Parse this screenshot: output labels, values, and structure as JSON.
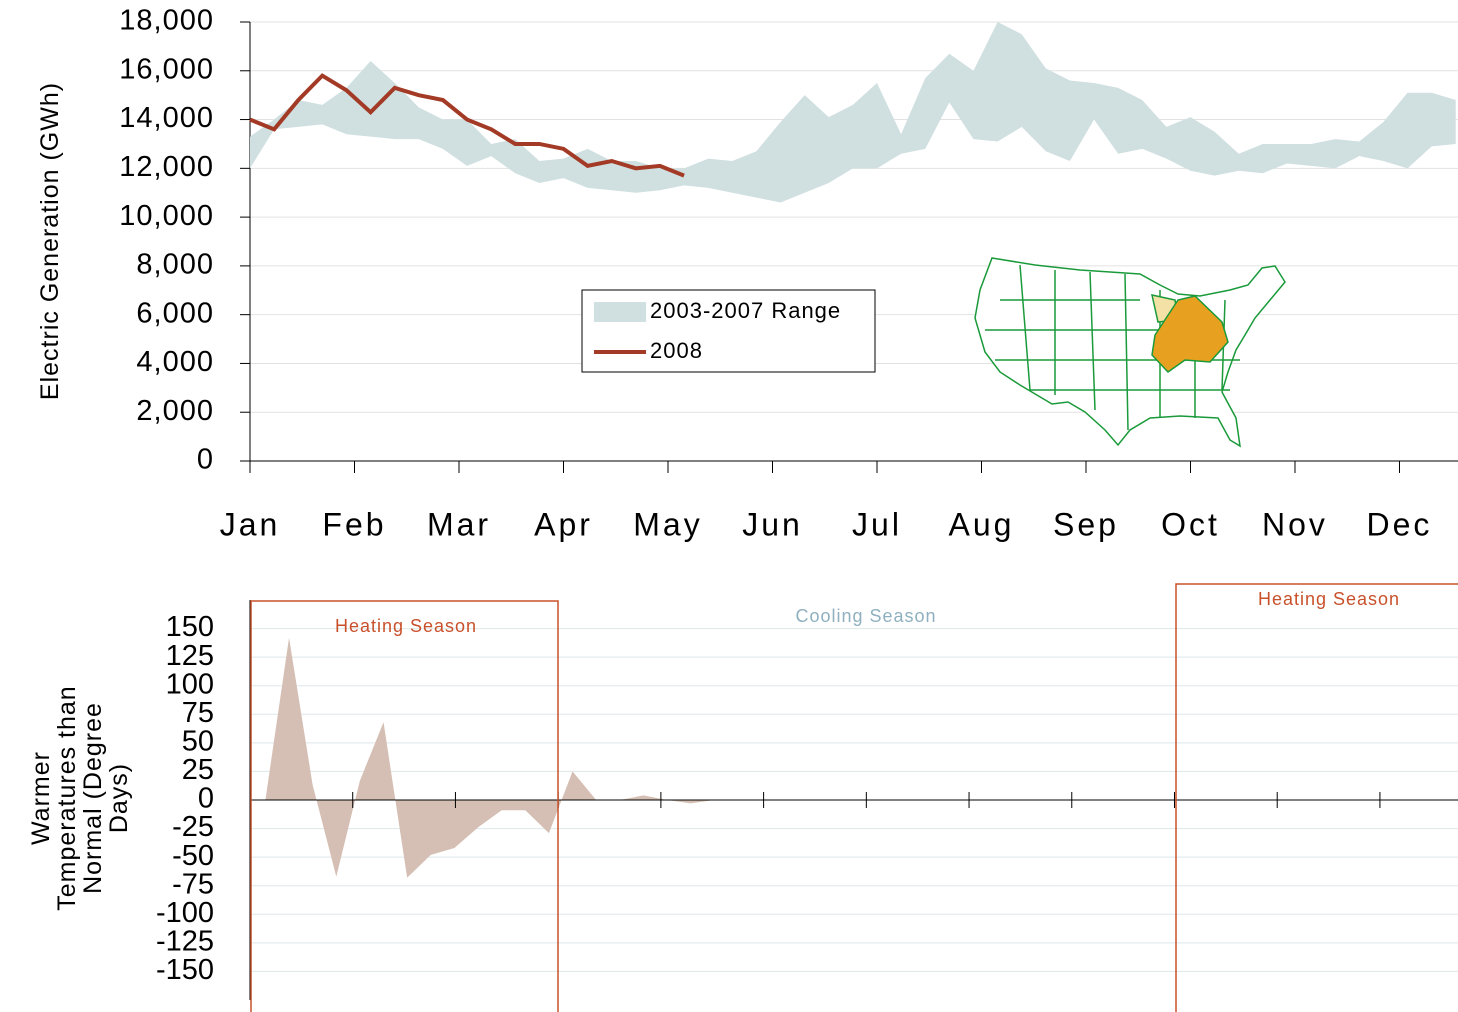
{
  "chart_data": [
    {
      "type": "line",
      "ylabel": "Electric Generation (GWh)",
      "x": [
        0,
        0.231,
        0.462,
        0.692,
        0.923,
        1.154,
        1.385,
        1.615,
        1.846,
        2.077,
        2.308,
        2.538,
        2.769,
        3,
        3.231,
        3.462,
        3.692,
        3.923,
        4.154,
        4.385,
        4.615,
        4.846,
        5.077,
        5.308,
        5.538,
        5.769,
        6,
        6.231,
        6.462,
        6.692,
        6.923,
        7.154,
        7.385,
        7.615,
        7.846,
        8.077,
        8.308,
        8.538,
        8.769,
        9,
        9.231,
        9.462,
        9.692,
        9.923,
        10.154,
        10.385,
        10.615,
        10.846,
        11.077,
        11.308,
        11.538
      ],
      "series": [
        {
          "name": "2003-2007 Range",
          "color": "#d0dfe0",
          "low": [
            12000,
            13600,
            13700,
            13800,
            13400,
            13300,
            13200,
            13200,
            12800,
            12100,
            12500,
            11800,
            11400,
            11600,
            11200,
            11100,
            11000,
            11100,
            11300,
            11200,
            11000,
            10800,
            10600,
            11000,
            11400,
            12000,
            12000,
            12600,
            12800,
            14700,
            13200,
            13100,
            13700,
            12700,
            12300,
            14000,
            12600,
            12800,
            12400,
            11900,
            11700,
            11900,
            11800,
            12200,
            12100,
            12000,
            12500,
            12300,
            12000,
            12900,
            13000
          ],
          "high": [
            13300,
            14000,
            14800,
            14600,
            15300,
            16400,
            15500,
            14500,
            14000,
            14000,
            13000,
            13200,
            12300,
            12400,
            12800,
            12300,
            12300,
            12000,
            12000,
            12400,
            12300,
            12700,
            13900,
            15000,
            14100,
            14600,
            15500,
            13400,
            15700,
            16700,
            16000,
            18000,
            17500,
            16100,
            15600,
            15500,
            15300,
            14800,
            13700,
            14100,
            13500,
            12600,
            13000,
            13000,
            13000,
            13200,
            13100,
            13900,
            15100,
            15100,
            14800
          ]
        },
        {
          "name": "2008",
          "color": "#a33a25",
          "values": [
            14000,
            13600,
            14800,
            15800,
            15200,
            14300,
            15300,
            15000,
            14800,
            14000,
            13600,
            13000,
            13000,
            12800,
            12100,
            12300,
            12000,
            12100,
            11700,
            null,
            null,
            null,
            null,
            null,
            null,
            null,
            null,
            null,
            null,
            null,
            null,
            null,
            null,
            null,
            null,
            null,
            null,
            null,
            null,
            null,
            null,
            null,
            null,
            null,
            null,
            null,
            null,
            null,
            null,
            null,
            null
          ]
        }
      ],
      "xlim": [
        0,
        11.56
      ],
      "xticks": [
        {
          "value": 0,
          "label": "Jan"
        },
        {
          "value": 1,
          "label": "Feb"
        },
        {
          "value": 2,
          "label": "Mar"
        },
        {
          "value": 3,
          "label": "Apr"
        },
        {
          "value": 4,
          "label": "May"
        },
        {
          "value": 5,
          "label": "Jun"
        },
        {
          "value": 6,
          "label": "Jul"
        },
        {
          "value": 7,
          "label": "Aug"
        },
        {
          "value": 8,
          "label": "Sep"
        },
        {
          "value": 9,
          "label": "Oct"
        },
        {
          "value": 10,
          "label": "Nov"
        },
        {
          "value": 11,
          "label": "Dec"
        }
      ],
      "ylim": [
        0,
        18000
      ],
      "yticks": [
        0,
        {
          "value": 2000,
          "label": "2,000"
        },
        {
          "value": 4000,
          "label": "4,000"
        },
        {
          "value": 6000,
          "label": "6,000"
        },
        {
          "value": 8000,
          "label": "8,000"
        },
        {
          "value": 10000,
          "label": "10,000"
        },
        {
          "value": 12000,
          "label": "12,000"
        },
        {
          "value": 14000,
          "label": "14,000"
        },
        {
          "value": 16000,
          "label": "16,000"
        },
        {
          "value": 18000,
          "label": "18,000"
        }
      ],
      "grid": true
    },
    {
      "type": "area",
      "ylabel": "Warmer Temperatures than Normal (Degree Days)",
      "x": [
        0.15,
        0.38,
        0.61,
        0.84,
        1.07,
        1.3,
        1.53,
        1.76,
        1.99,
        2.22,
        2.45,
        2.68,
        2.91,
        3.14,
        3.37,
        3.6,
        3.83,
        4.06,
        4.29,
        4.52
      ],
      "values": [
        0,
        142,
        13,
        -67,
        17,
        68,
        -68,
        -48,
        -42,
        -24,
        -9,
        -9,
        -29,
        25,
        0,
        0,
        4,
        0,
        -3,
        0
      ],
      "color": "#d5bfb4",
      "xlim": [
        0,
        11.76
      ],
      "xticks": [
        0,
        1,
        2,
        3,
        4,
        5,
        6,
        7,
        8,
        9,
        10,
        11
      ],
      "ylim": [
        -175,
        175
      ],
      "yticks": [
        -150,
        -125,
        -100,
        -75,
        -50,
        -25,
        0,
        25,
        50,
        75,
        100,
        125,
        150
      ],
      "grid": true,
      "annotations": [
        "Heating Season",
        "Cooling Season",
        "Heating Season"
      ]
    }
  ]
}
